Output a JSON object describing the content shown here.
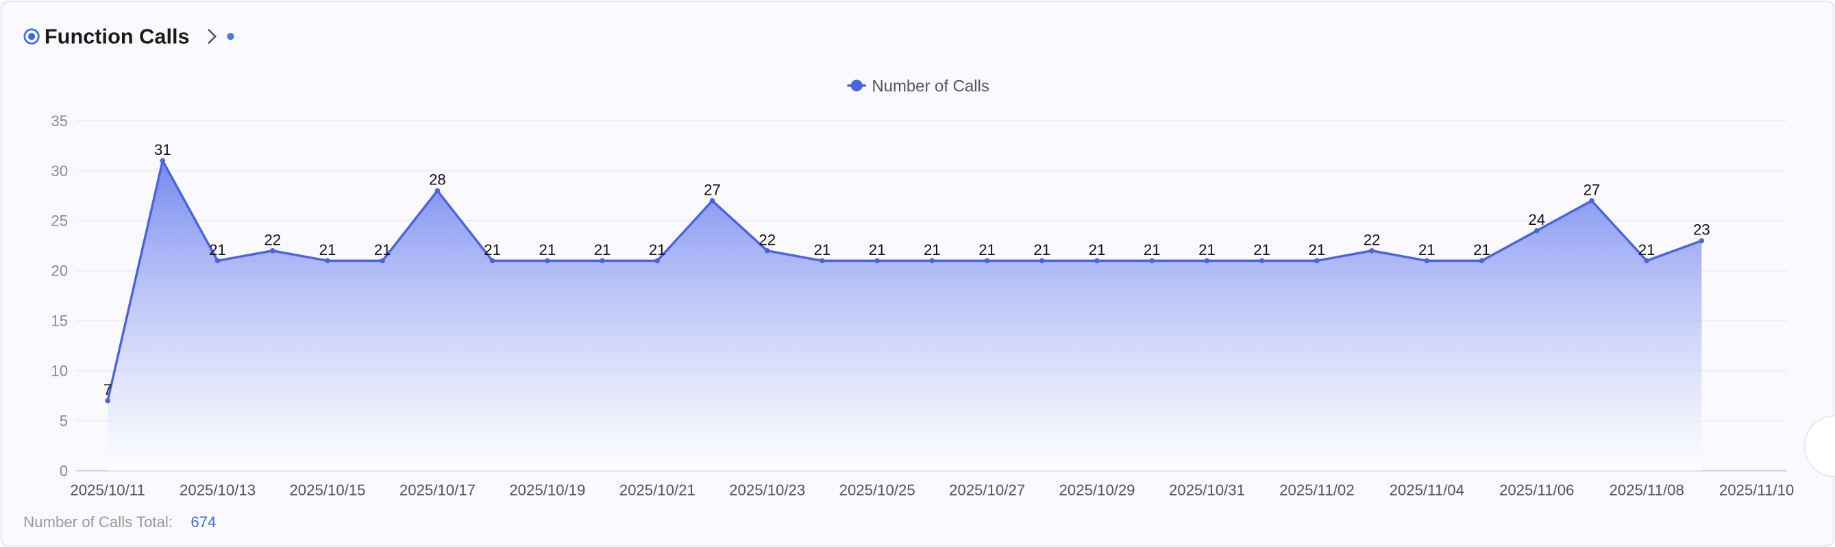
{
  "chart_data": {
    "type": "line",
    "title": "Function Calls",
    "categories": [
      "2025/10/11",
      null,
      "2025/10/13",
      null,
      "2025/10/15",
      null,
      "2025/10/17",
      null,
      "2025/10/19",
      null,
      "2025/10/21",
      null,
      "2025/10/23",
      null,
      "2025/10/25",
      null,
      "2025/10/27",
      null,
      "2025/10/29",
      null,
      "2025/10/31",
      null,
      "2025/11/02",
      null,
      "2025/11/04",
      null,
      "2025/11/06",
      null,
      "2025/11/08",
      null,
      "2025/11/10"
    ],
    "series": [
      {
        "name": "Number of Calls",
        "color": "#4a63e0",
        "values": [
          7,
          31,
          21,
          22,
          21,
          21,
          28,
          21,
          21,
          21,
          21,
          27,
          22,
          21,
          21,
          21,
          21,
          21,
          21,
          21,
          21,
          21,
          21,
          22,
          21,
          21,
          24,
          27,
          21,
          23,
          null
        ]
      }
    ],
    "ylim": [
      0,
      35
    ],
    "yticks": [
      0,
      5,
      10,
      15,
      20,
      25,
      30,
      35
    ],
    "grid": true,
    "total_label": "Number of Calls Total:",
    "total": 674
  }
}
